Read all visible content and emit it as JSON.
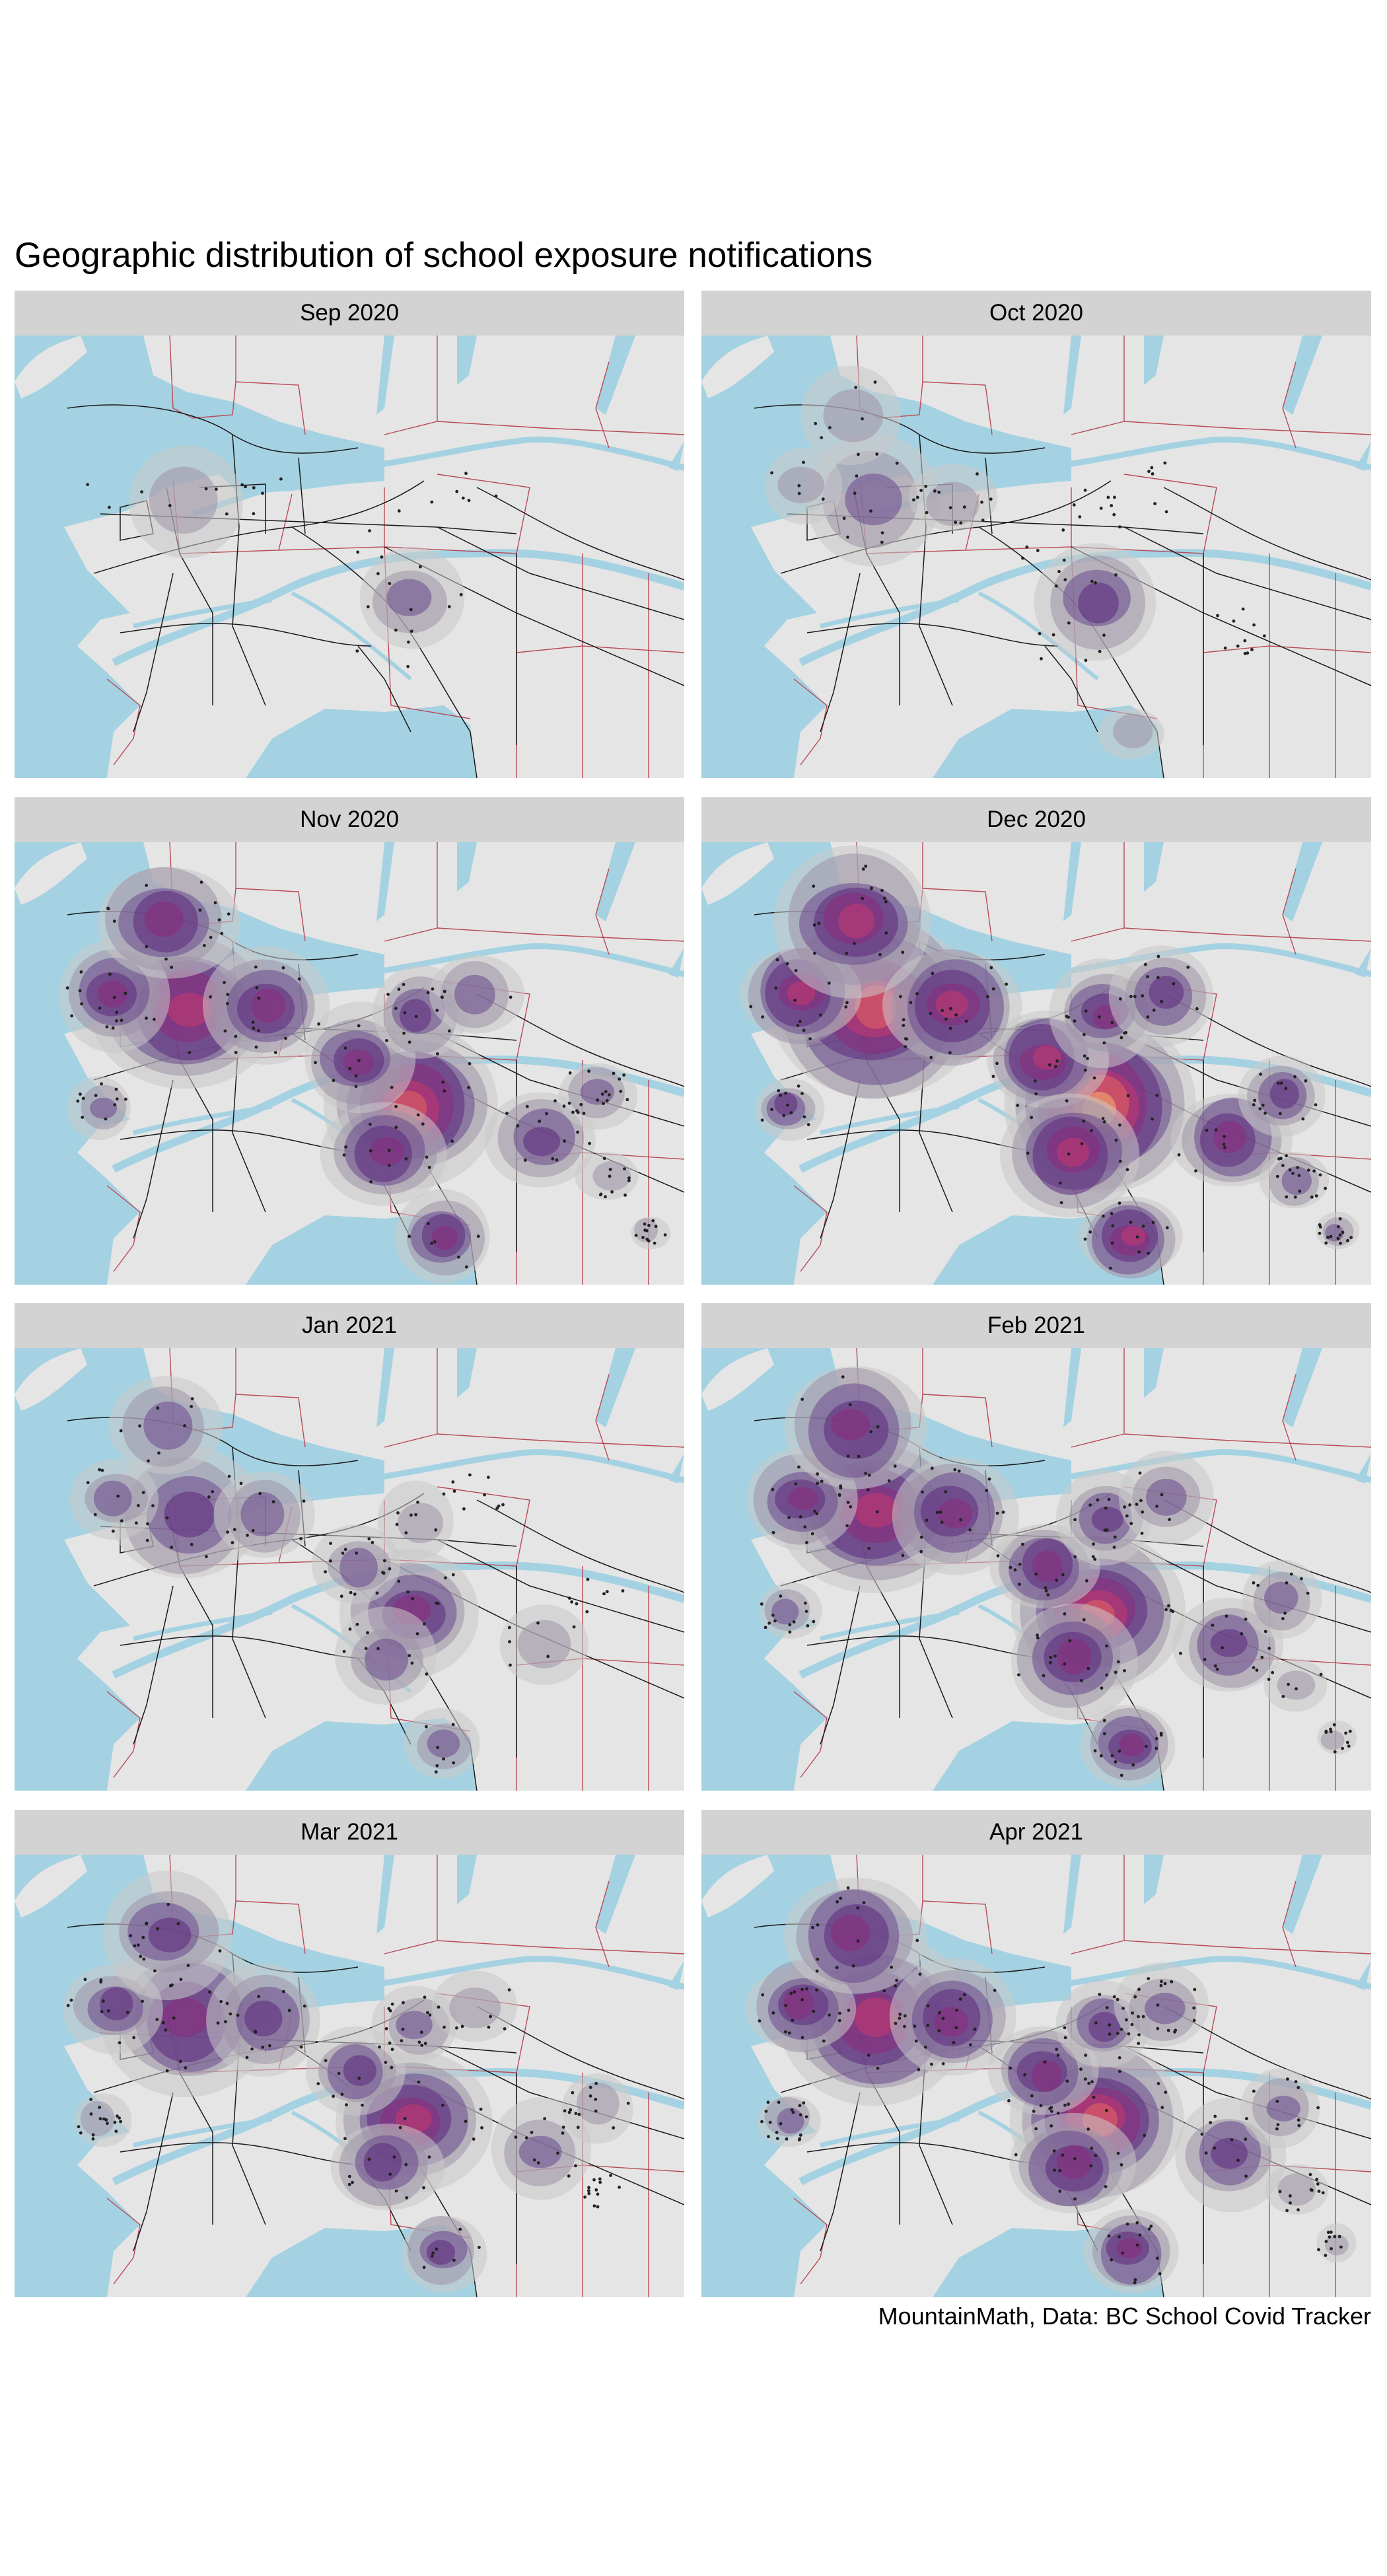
{
  "title": "Geographic distribution of school exposure notifications",
  "caption": "MountainMath, Data: BC School Covid Tracker",
  "colors": {
    "water": "#a4d2e2",
    "land": "#e5e5e5",
    "strip": "#d3d3d3",
    "boundary": "#b84a55",
    "road": "#1a1a1a",
    "density_palette": [
      "#c8c8c8",
      "#9e94a8",
      "#6a4a8c",
      "#5c2a7c",
      "#8c2a7c",
      "#c4386f",
      "#e8655e",
      "#f5b16a"
    ]
  },
  "panels": [
    {
      "label": "Sep 2020",
      "intensity": 1,
      "notifications": 35
    },
    {
      "label": "Oct 2020",
      "intensity": 2,
      "notifications": 80
    },
    {
      "label": "Nov 2020",
      "intensity": 5,
      "notifications": 170
    },
    {
      "label": "Dec 2020",
      "intensity": 6,
      "notifications": 190
    },
    {
      "label": "Jan 2021",
      "intensity": 3,
      "notifications": 110
    },
    {
      "label": "Feb 2021",
      "intensity": 5,
      "notifications": 180
    },
    {
      "label": "Mar 2021",
      "intensity": 4,
      "notifications": 170
    },
    {
      "label": "Apr 2021",
      "intensity": 5,
      "notifications": 220
    }
  ]
}
